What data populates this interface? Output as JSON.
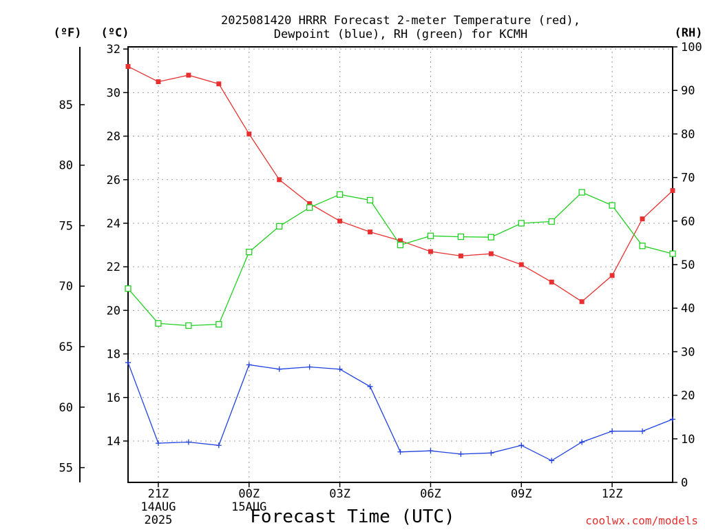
{
  "chart_data": {
    "type": "line",
    "title_lines": [
      "2025081420 HRRR Forecast 2-meter Temperature (red),",
      "Dewpoint (blue), RH (green) for KCMH"
    ],
    "xlabel": "Forecast Time (UTC)",
    "credit": "coolwx.com/models",
    "unit_labels": {
      "fahrenheit": "(ºF)",
      "celsius": "(ºC)",
      "rh": "(RH)"
    },
    "x_hours": [
      20,
      21,
      22,
      23,
      24,
      25,
      26,
      27,
      28,
      29,
      30,
      31,
      32,
      33,
      34,
      35,
      36,
      37,
      38
    ],
    "x_tick_labels": [
      {
        "hour": 21,
        "lines": [
          "21Z",
          "14AUG",
          "2025"
        ]
      },
      {
        "hour": 24,
        "lines": [
          "00Z",
          "15AUG"
        ]
      },
      {
        "hour": 27,
        "lines": [
          "03Z"
        ]
      },
      {
        "hour": 30,
        "lines": [
          "06Z"
        ]
      },
      {
        "hour": 33,
        "lines": [
          "09Z"
        ]
      },
      {
        "hour": 36,
        "lines": [
          "12Z"
        ]
      }
    ],
    "y_left_celsius": {
      "range": [
        12.1,
        32.1
      ],
      "ticks": [
        14,
        16,
        18,
        20,
        22,
        24,
        26,
        28,
        30,
        32
      ]
    },
    "y_left_fahrenheit": {
      "ticks": [
        55,
        60,
        65,
        70,
        75,
        80,
        85
      ]
    },
    "y_right_rh": {
      "range": [
        0,
        100
      ],
      "ticks": [
        0,
        10,
        20,
        30,
        40,
        50,
        60,
        70,
        80,
        90,
        100
      ]
    },
    "series": [
      {
        "name": "2-meter Temperature (red)",
        "axis": "celsius",
        "color": "#e83030",
        "marker": "filled-square",
        "values": [
          31.2,
          30.5,
          30.8,
          30.4,
          28.1,
          26.0,
          24.9,
          24.1,
          23.6,
          23.2,
          22.7,
          22.5,
          22.6,
          22.1,
          21.3,
          20.4,
          21.6,
          24.2,
          25.5
        ]
      },
      {
        "name": "Dewpoint (blue)",
        "axis": "celsius",
        "color": "#2040e0",
        "marker": "plus",
        "values": [
          17.6,
          13.9,
          13.95,
          13.8,
          17.5,
          17.3,
          17.4,
          17.3,
          16.5,
          13.5,
          13.55,
          13.4,
          13.45,
          13.8,
          13.1,
          13.95,
          14.45,
          14.45,
          15.0
        ]
      },
      {
        "name": "RH (green)",
        "axis": "rh",
        "color": "#20d020",
        "marker": "open-square",
        "values": [
          44.5,
          36.5,
          36.0,
          36.3,
          52.9,
          58.8,
          63.1,
          66.1,
          64.8,
          54.5,
          56.6,
          56.4,
          56.3,
          59.5,
          59.9,
          66.6,
          63.6,
          54.3,
          52.5
        ]
      }
    ]
  }
}
